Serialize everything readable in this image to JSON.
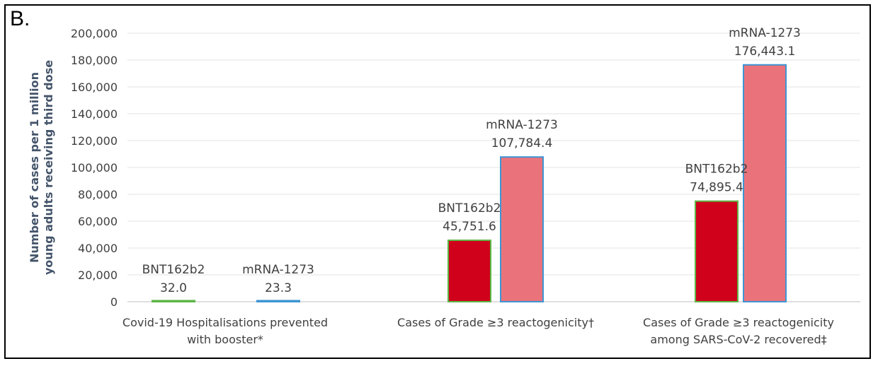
{
  "panel_label": "B.",
  "chart_data": {
    "type": "bar",
    "ylabel": [
      "Number of cases per 1 million",
      "young adults receiving third dose"
    ],
    "xlabel": "",
    "ylim": [
      0,
      200000
    ],
    "ytick_step": 20000,
    "yticks": [
      "0",
      "20,000",
      "40,000",
      "60,000",
      "80,000",
      "100,000",
      "120,000",
      "140,000",
      "160,000",
      "180,000",
      "200,000"
    ],
    "grid": true,
    "categories": [
      [
        "Covid-19 Hospitalisations prevented",
        "with booster*"
      ],
      [
        "Cases of Grade ≥3 reactogenicity†"
      ],
      [
        "Cases of Grade ≥3 reactogenicity",
        "among SARS-CoV-2 recovered‡"
      ]
    ],
    "series": [
      {
        "name": "BNT162b2",
        "values": [
          32.0,
          45751.6,
          74895.4
        ],
        "labels": [
          "32.0",
          "45,751.6",
          "74,895.4"
        ],
        "colors": [
          "#7fd46a",
          "#d0021b",
          "#d0021b"
        ],
        "border": "#5cb646"
      },
      {
        "name": "mRNA-1273",
        "values": [
          23.3,
          107784.4,
          176443.1
        ],
        "labels": [
          "23.3",
          "107,784.4",
          "176,443.1"
        ],
        "colors": [
          "#9fd2f2",
          "#ea737b",
          "#ea737b"
        ],
        "border": "#3d95d3"
      }
    ]
  }
}
